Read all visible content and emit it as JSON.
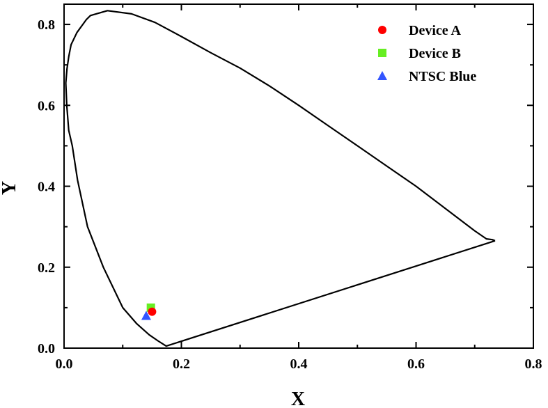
{
  "chart_data": {
    "type": "scatter",
    "title": "",
    "xlabel": "X",
    "ylabel": "Y",
    "xlim": [
      0.0,
      0.8
    ],
    "ylim": [
      0.0,
      0.85
    ],
    "xticks": [
      0.0,
      0.2,
      0.4,
      0.6,
      0.8
    ],
    "yticks": [
      0.0,
      0.2,
      0.4,
      0.6,
      0.8
    ],
    "xtick_labels": [
      "0.0",
      "0.2",
      "0.4",
      "0.6",
      "0.8"
    ],
    "ytick_labels": [
      "0.0",
      "0.2",
      "0.4",
      "0.6",
      "0.8"
    ],
    "grid": false,
    "legend_position": "top-right",
    "locus": {
      "x": [
        0.7347,
        0.73,
        0.72,
        0.7,
        0.65,
        0.6,
        0.55,
        0.5,
        0.45,
        0.4,
        0.35,
        0.3,
        0.25,
        0.2,
        0.155,
        0.115,
        0.074,
        0.045,
        0.038,
        0.022,
        0.012,
        0.008,
        0.005,
        0.003,
        0.0046,
        0.008,
        0.014,
        0.023,
        0.04,
        0.067,
        0.1,
        0.124,
        0.145,
        0.16,
        0.1741,
        0.7347
      ],
      "y": [
        0.2653,
        0.268,
        0.27,
        0.29,
        0.345,
        0.4,
        0.45,
        0.5,
        0.55,
        0.6,
        0.648,
        0.692,
        0.73,
        0.77,
        0.805,
        0.826,
        0.834,
        0.822,
        0.812,
        0.78,
        0.75,
        0.72,
        0.69,
        0.655,
        0.6,
        0.538,
        0.5,
        0.415,
        0.3,
        0.2,
        0.1,
        0.06,
        0.033,
        0.018,
        0.005,
        0.2653
      ]
    },
    "series": [
      {
        "name": "Device A",
        "marker": "circle",
        "color": "#ff0000",
        "x": [
          0.15
        ],
        "y": [
          0.09
        ]
      },
      {
        "name": "Device B",
        "marker": "square",
        "color": "#66ee22",
        "x": [
          0.148
        ],
        "y": [
          0.1
        ]
      },
      {
        "name": "NTSC Blue",
        "marker": "triangle",
        "color": "#3355ff",
        "x": [
          0.14
        ],
        "y": [
          0.08
        ]
      }
    ]
  }
}
